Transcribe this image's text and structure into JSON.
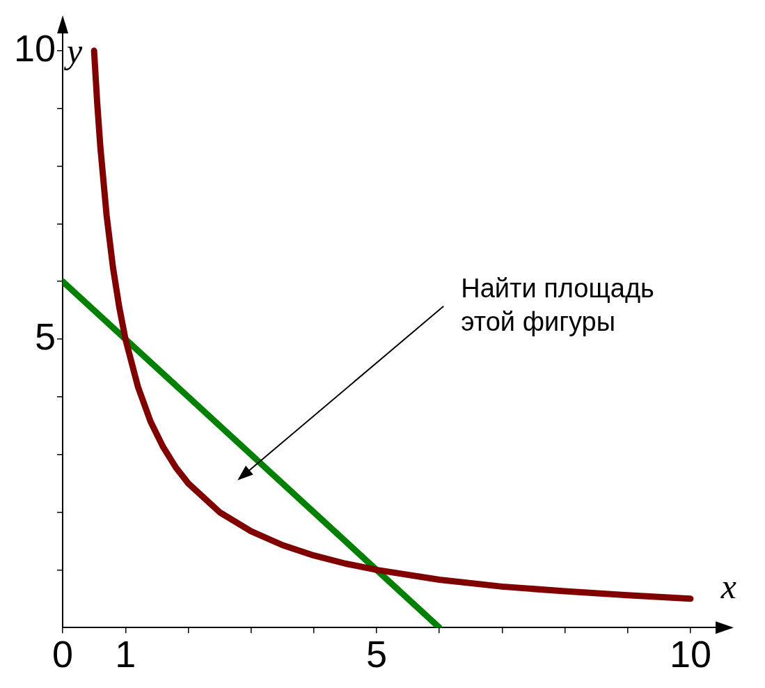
{
  "chart_data": {
    "type": "line",
    "xlabel": "x",
    "ylabel": "y",
    "xlim": [
      0,
      10.4
    ],
    "ylim": [
      0,
      10.3
    ],
    "xticks": [
      0,
      1,
      {
        "value": 2,
        "label": null
      },
      {
        "value": 3,
        "label": null
      },
      {
        "value": 4,
        "label": null
      },
      5,
      {
        "value": 6,
        "label": null
      },
      {
        "value": 7,
        "label": null
      },
      {
        "value": 8,
        "label": null
      },
      {
        "value": 9,
        "label": null
      },
      10
    ],
    "yticks": [
      {
        "value": 1,
        "label": null
      },
      {
        "value": 2,
        "label": null
      },
      {
        "value": 3,
        "label": null
      },
      {
        "value": 4,
        "label": null
      },
      5,
      {
        "value": 6,
        "label": null
      },
      {
        "value": 7,
        "label": null
      },
      {
        "value": 8,
        "label": null
      },
      {
        "value": 9,
        "label": null
      },
      10
    ],
    "series": [
      {
        "color": "#800000",
        "x": [
          0.5,
          0.55,
          0.6,
          0.7,
          0.8,
          0.9,
          1,
          1.2,
          1.4,
          1.6,
          1.8,
          2,
          2.5,
          3,
          3.5,
          4,
          4.5,
          5,
          6,
          7,
          8,
          9,
          10
        ],
        "values": [
          10,
          9.09,
          8.33,
          7.14,
          6.25,
          5.56,
          5,
          4.17,
          3.57,
          3.13,
          2.78,
          2.5,
          2,
          1.67,
          1.43,
          1.25,
          1.11,
          1,
          0.83,
          0.71,
          0.63,
          0.56,
          0.5
        ]
      },
      {
        "color": "#008000",
        "x": [
          0,
          6
        ],
        "values": [
          6,
          0
        ]
      }
    ],
    "annotations": [
      "Найти площадь этой фигуры"
    ],
    "grid": false,
    "legend": false,
    "marker": "none",
    "line_style": "solid"
  }
}
